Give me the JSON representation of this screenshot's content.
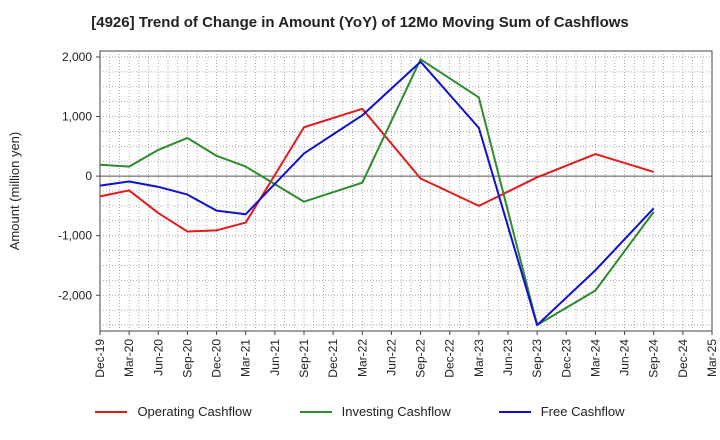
{
  "chart_data": {
    "type": "line",
    "title": "[4926]  Trend of Change in Amount (YoY) of 12Mo Moving Sum of Cashflows",
    "xlabel": "",
    "ylabel": "Amount (million yen)",
    "categories": [
      "Dec-19",
      "Mar-20",
      "Jun-20",
      "Sep-20",
      "Dec-20",
      "Mar-21",
      "Jun-21",
      "Sep-21",
      "Dec-21",
      "Mar-22",
      "Jun-22",
      "Sep-22",
      "Dec-22",
      "Mar-23",
      "Jun-23",
      "Sep-23",
      "Dec-23",
      "Mar-24",
      "Jun-24",
      "Sep-24",
      "Dec-24",
      "Mar-25"
    ],
    "ylim": [
      -2600,
      2100
    ],
    "yticks": [
      2000,
      1000,
      0,
      -1000,
      -2000
    ],
    "ytick_labels": [
      "2,000",
      "1,000",
      "0",
      "-1,000",
      "-2,000"
    ],
    "grid": true,
    "legend_position": "bottom",
    "series": [
      {
        "name": "Operating Cashflow",
        "color": "#e41a1a",
        "values": [
          -340,
          -240,
          -620,
          -930,
          -910,
          -780,
          null,
          820,
          null,
          1130,
          null,
          -40,
          null,
          -500,
          null,
          -20,
          null,
          370,
          null,
          70,
          null,
          null
        ]
      },
      {
        "name": "Investing Cashflow",
        "color": "#2e8b2e",
        "values": [
          190,
          160,
          440,
          640,
          340,
          160,
          null,
          -430,
          null,
          -110,
          null,
          1960,
          null,
          1320,
          null,
          -2500,
          null,
          -1920,
          null,
          -600,
          null,
          null
        ]
      },
      {
        "name": "Free Cashflow",
        "color": "#1010d0",
        "values": [
          -160,
          -90,
          -180,
          -310,
          -580,
          -640,
          null,
          380,
          null,
          1020,
          null,
          1920,
          null,
          810,
          null,
          -2500,
          null,
          -1580,
          null,
          -540,
          null,
          null
        ]
      }
    ]
  }
}
